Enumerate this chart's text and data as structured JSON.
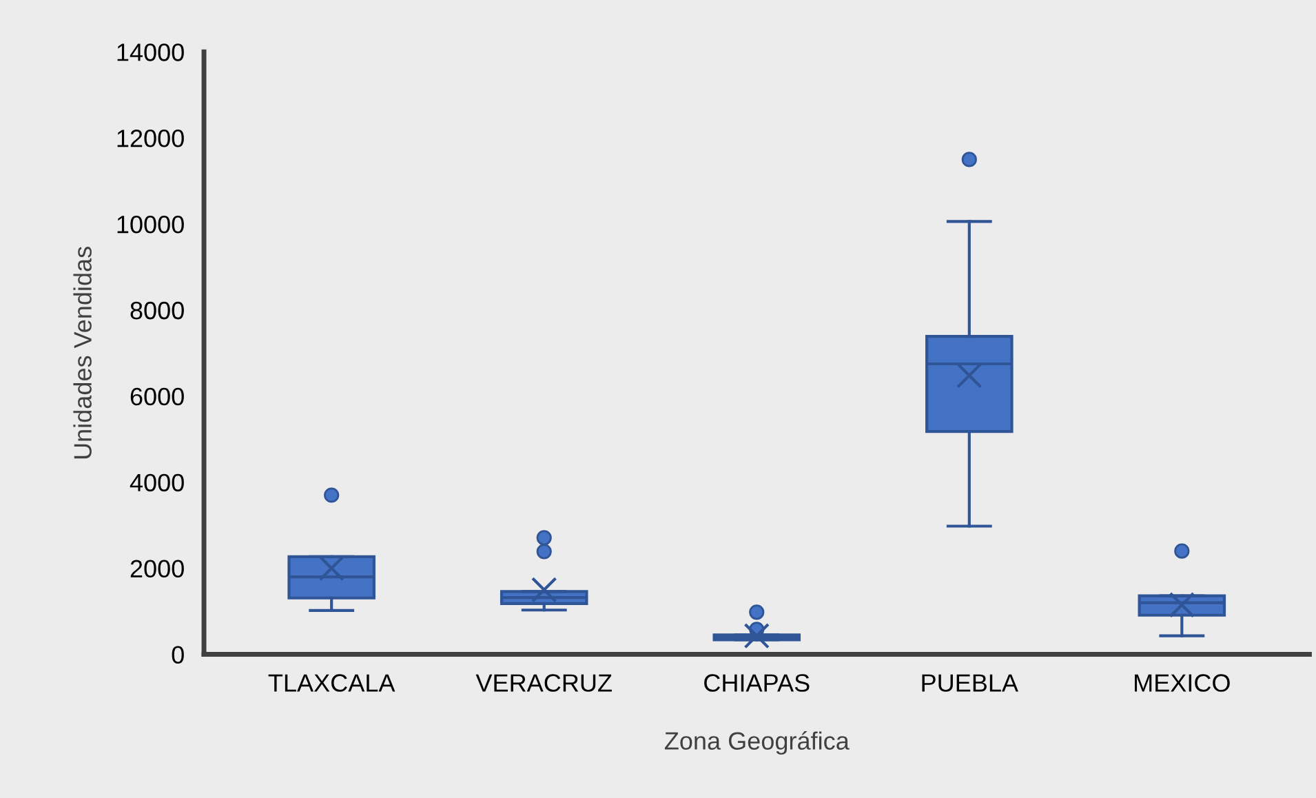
{
  "chart_data": {
    "type": "box",
    "xlabel": "Zona Geográfica",
    "ylabel": "Unidades Vendidas",
    "categories": [
      "TLAXCALA",
      "VERACRUZ",
      "CHIAPAS",
      "PUEBLA",
      "MEXICO"
    ],
    "color": "#4472c4",
    "ylim": [
      0,
      14000
    ],
    "yticks": [
      0,
      2000,
      4000,
      6000,
      8000,
      10000,
      12000,
      14000
    ],
    "grid": false,
    "boxes": [
      {
        "low": 1020,
        "q1": 1310,
        "median": 1800,
        "q3": 2270,
        "high": 2270,
        "mean": 2000,
        "outliers": [
          3700
        ]
      },
      {
        "low": 1030,
        "q1": 1180,
        "median": 1320,
        "q3": 1460,
        "high": 1460,
        "mean": 1500,
        "outliers": [
          2390,
          2710
        ]
      },
      {
        "low": 340,
        "q1": 340,
        "median": 400,
        "q3": 450,
        "high": 450,
        "mean": 430,
        "outliers": [
          580,
          980
        ]
      },
      {
        "low": 2980,
        "q1": 5180,
        "median": 6750,
        "q3": 7390,
        "high": 10060,
        "mean": 6480,
        "outliers": [
          11500
        ]
      },
      {
        "low": 430,
        "q1": 910,
        "median": 1200,
        "q3": 1360,
        "high": 1360,
        "mean": 1150,
        "outliers": [
          2400
        ]
      }
    ]
  }
}
